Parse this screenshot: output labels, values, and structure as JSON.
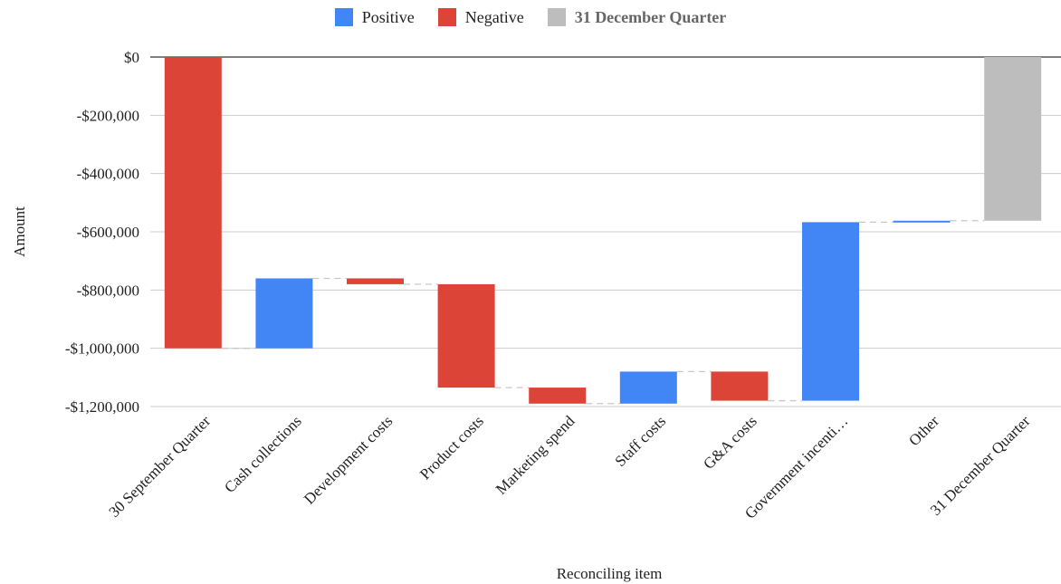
{
  "chart_data": {
    "type": "waterfall",
    "legend": [
      {
        "name": "Positive",
        "color": "#4285f4"
      },
      {
        "name": "Negative",
        "color": "#db4437"
      },
      {
        "name": "31 December Quarter",
        "color": "#bdbdbd"
      }
    ],
    "legend_position": "top-center",
    "xlabel": "Reconciling item",
    "ylabel": "Amount",
    "ylim": [
      -1200000,
      0
    ],
    "yticks": [
      {
        "value": 0,
        "label": "$0"
      },
      {
        "value": -200000,
        "label": "-$200,000"
      },
      {
        "value": -400000,
        "label": "-$400,000"
      },
      {
        "value": -600000,
        "label": "-$600,000"
      },
      {
        "value": -800000,
        "label": "-$800,000"
      },
      {
        "value": -1000000,
        "label": "-$1,000,000"
      },
      {
        "value": -1200000,
        "label": "-$1,200,000"
      }
    ],
    "grid": true,
    "categories": [
      "30 September Quarter",
      "Cash collections",
      "Development costs",
      "Product costs",
      "Marketing spend",
      "Staff costs",
      "G&A costs",
      "Government incenti…",
      "Other",
      "31 December Quarter"
    ],
    "bars": [
      {
        "category": "30 September Quarter",
        "type": "negative",
        "start": 0,
        "end": -1000000
      },
      {
        "category": "Cash collections",
        "type": "positive",
        "start": -1000000,
        "end": -760000
      },
      {
        "category": "Development costs",
        "type": "negative",
        "start": -760000,
        "end": -780000
      },
      {
        "category": "Product costs",
        "type": "negative",
        "start": -780000,
        "end": -1135000
      },
      {
        "category": "Marketing spend",
        "type": "negative",
        "start": -1135000,
        "end": -1190000
      },
      {
        "category": "Staff costs",
        "type": "positive",
        "start": -1190000,
        "end": -1080000
      },
      {
        "category": "G&A costs",
        "type": "negative",
        "start": -1080000,
        "end": -1180000
      },
      {
        "category": "Government incenti…",
        "type": "positive",
        "start": -1180000,
        "end": -567000
      },
      {
        "category": "Other",
        "type": "positive",
        "start": -567000,
        "end": -562000
      },
      {
        "category": "31 December Quarter",
        "type": "total",
        "start": 0,
        "end": -562000
      }
    ]
  }
}
